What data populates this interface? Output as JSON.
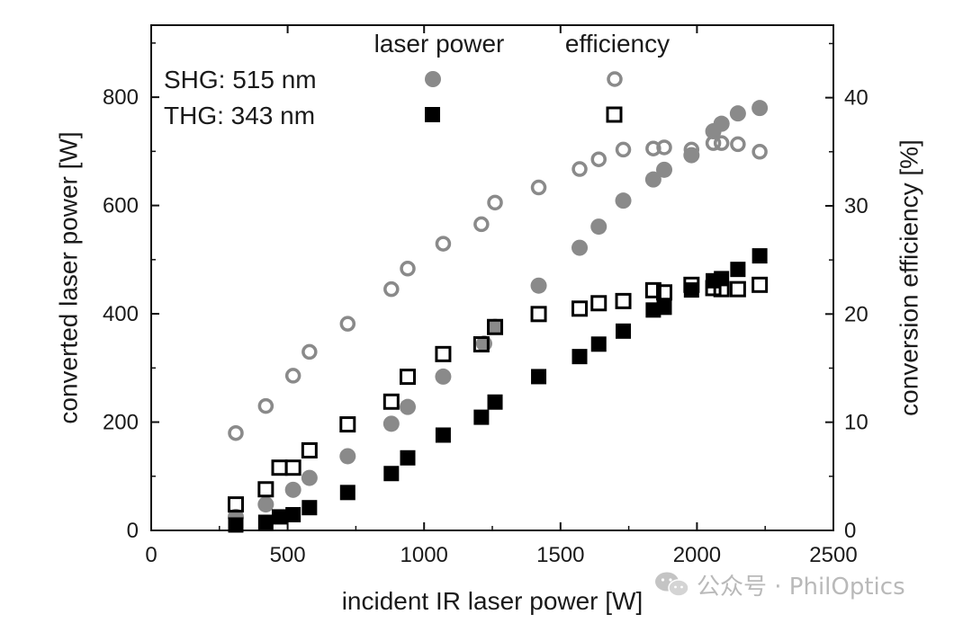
{
  "chart_data": {
    "type": "scatter",
    "xlabel": "incident IR laser power [W]",
    "ylabel": "converted laser power [W]",
    "y2label": "conversion efficiency [%]",
    "xlim": [
      0,
      2500
    ],
    "ylim": [
      0,
      933
    ],
    "y2lim": [
      0,
      46.7
    ],
    "xticks": [
      0,
      500,
      1000,
      1500,
      2000,
      2500
    ],
    "yticks": [
      0,
      200,
      400,
      600,
      800
    ],
    "y2ticks": [
      0,
      10,
      20,
      30,
      40
    ],
    "grid": false,
    "legend_position": "top-left",
    "legend": {
      "col_power": "laser power",
      "col_efficiency": "efficiency",
      "rows": [
        {
          "label": "SHG: 515 nm"
        },
        {
          "label": "THG: 343 nm"
        }
      ]
    },
    "series": [
      {
        "name": "SHG: 515 nm",
        "quantity": "laser power",
        "axis": "left",
        "marker": "filled-circle",
        "color": "#8a8a8a",
        "x": [
          310,
          420,
          520,
          580,
          720,
          880,
          940,
          1070,
          1220,
          1260,
          1420,
          1570,
          1640,
          1730,
          1840,
          1880,
          1980,
          2060,
          2090,
          2150,
          2230
        ],
        "y": [
          25,
          48,
          75,
          97,
          137,
          197,
          228,
          284,
          345,
          376,
          452,
          522,
          561,
          609,
          648,
          666,
          693,
          737,
          751,
          770,
          780
        ]
      },
      {
        "name": "SHG: 515 nm",
        "quantity": "efficiency",
        "axis": "right",
        "marker": "open-circle",
        "color": "#8a8a8a",
        "x": [
          310,
          420,
          520,
          580,
          720,
          880,
          940,
          1070,
          1210,
          1260,
          1420,
          1570,
          1640,
          1730,
          1840,
          1880,
          1980,
          2060,
          2090,
          2150,
          2230
        ],
        "y": [
          9.0,
          11.5,
          14.3,
          16.5,
          19.1,
          22.3,
          24.2,
          26.5,
          28.3,
          30.3,
          31.7,
          33.4,
          34.3,
          35.2,
          35.3,
          35.4,
          35.2,
          35.8,
          35.8,
          35.7,
          35.0
        ]
      },
      {
        "name": "THG: 343 nm",
        "quantity": "laser power",
        "axis": "left",
        "marker": "filled-square",
        "color": "#000000",
        "x": [
          310,
          420,
          470,
          520,
          580,
          720,
          880,
          940,
          1070,
          1210,
          1260,
          1420,
          1570,
          1640,
          1730,
          1840,
          1880,
          1980,
          2060,
          2090,
          2150,
          2230
        ],
        "y": [
          10,
          15,
          25,
          29,
          42,
          70,
          105,
          134,
          176,
          209,
          237,
          284,
          321,
          344,
          368,
          407,
          412,
          444,
          461,
          465,
          482,
          507
        ]
      },
      {
        "name": "THG: 343 nm",
        "quantity": "efficiency",
        "axis": "right",
        "marker": "open-square",
        "color": "#000000",
        "x": [
          310,
          420,
          470,
          520,
          580,
          720,
          880,
          940,
          1070,
          1210,
          1260,
          1420,
          1570,
          1640,
          1730,
          1840,
          1880,
          1980,
          2060,
          2090,
          2150,
          2230
        ],
        "y": [
          2.4,
          3.8,
          5.8,
          5.8,
          7.4,
          9.8,
          11.9,
          14.2,
          16.3,
          17.2,
          18.8,
          20.0,
          20.5,
          21.0,
          21.2,
          22.2,
          22.0,
          22.7,
          22.4,
          22.3,
          22.3,
          22.7
        ]
      }
    ]
  },
  "watermark": {
    "text": "公众号 · PhilOptics",
    "icon": "wechat-icon"
  }
}
